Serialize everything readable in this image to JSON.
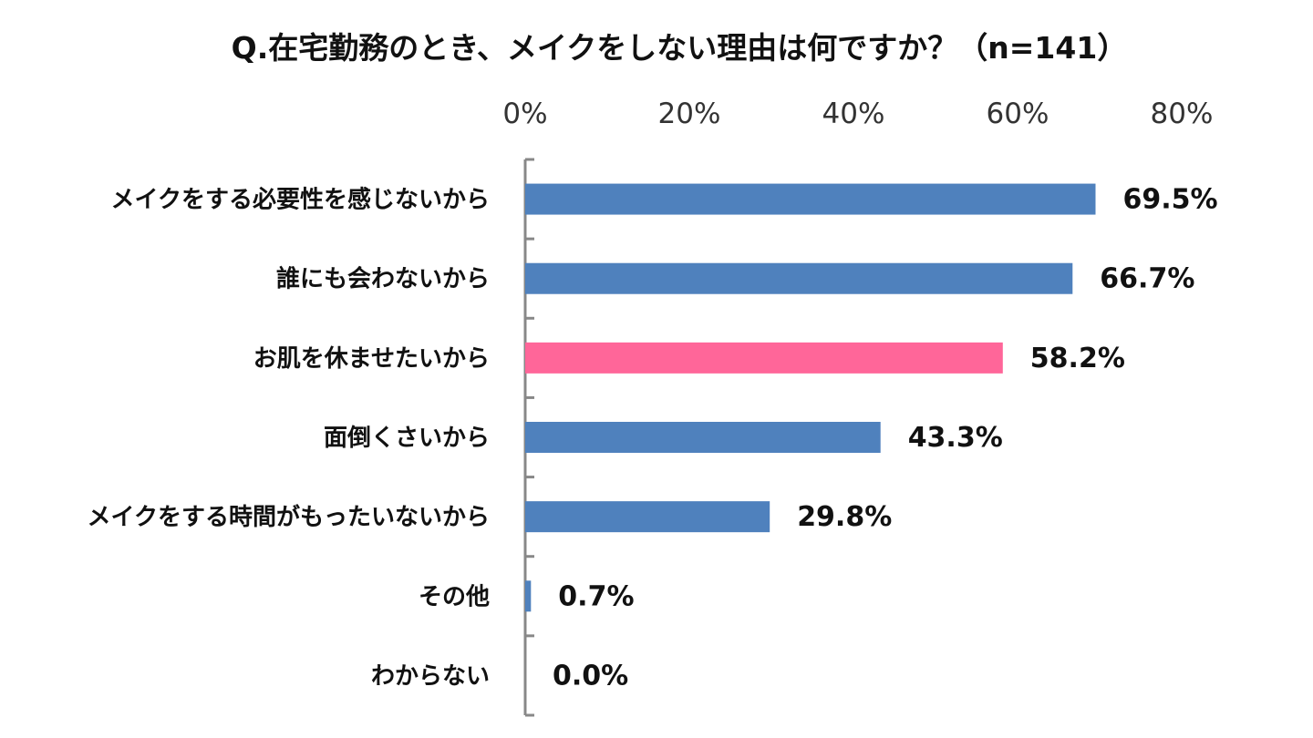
{
  "chart_data": {
    "type": "bar",
    "orientation": "horizontal",
    "title": "Q.在宅勤務のとき、メイクをしない理由は何ですか？（n=141）",
    "categories": [
      "メイクをする必要性を感じないから",
      "誰にも会わないから",
      "お肌を休ませたいから",
      "面倒くさいから",
      "メイクをする時間がもったいないから",
      "その他",
      "わからない"
    ],
    "values": [
      69.5,
      66.7,
      58.2,
      43.3,
      29.8,
      0.7,
      0.0
    ],
    "value_labels": [
      "69.5%",
      "66.7%",
      "58.2%",
      "43.3%",
      "29.8%",
      "0.7%",
      "0.0%"
    ],
    "highlight_index": 2,
    "xlim": [
      0,
      80
    ],
    "x_ticks": [
      0,
      20,
      40,
      60,
      80
    ],
    "x_tick_labels": [
      "0%",
      "20%",
      "40%",
      "60%",
      "80%"
    ],
    "axis_position": "top",
    "grid": false,
    "colors": {
      "bar": "#4f81bd",
      "highlight": "#ff6699",
      "axis": "#888888"
    }
  }
}
